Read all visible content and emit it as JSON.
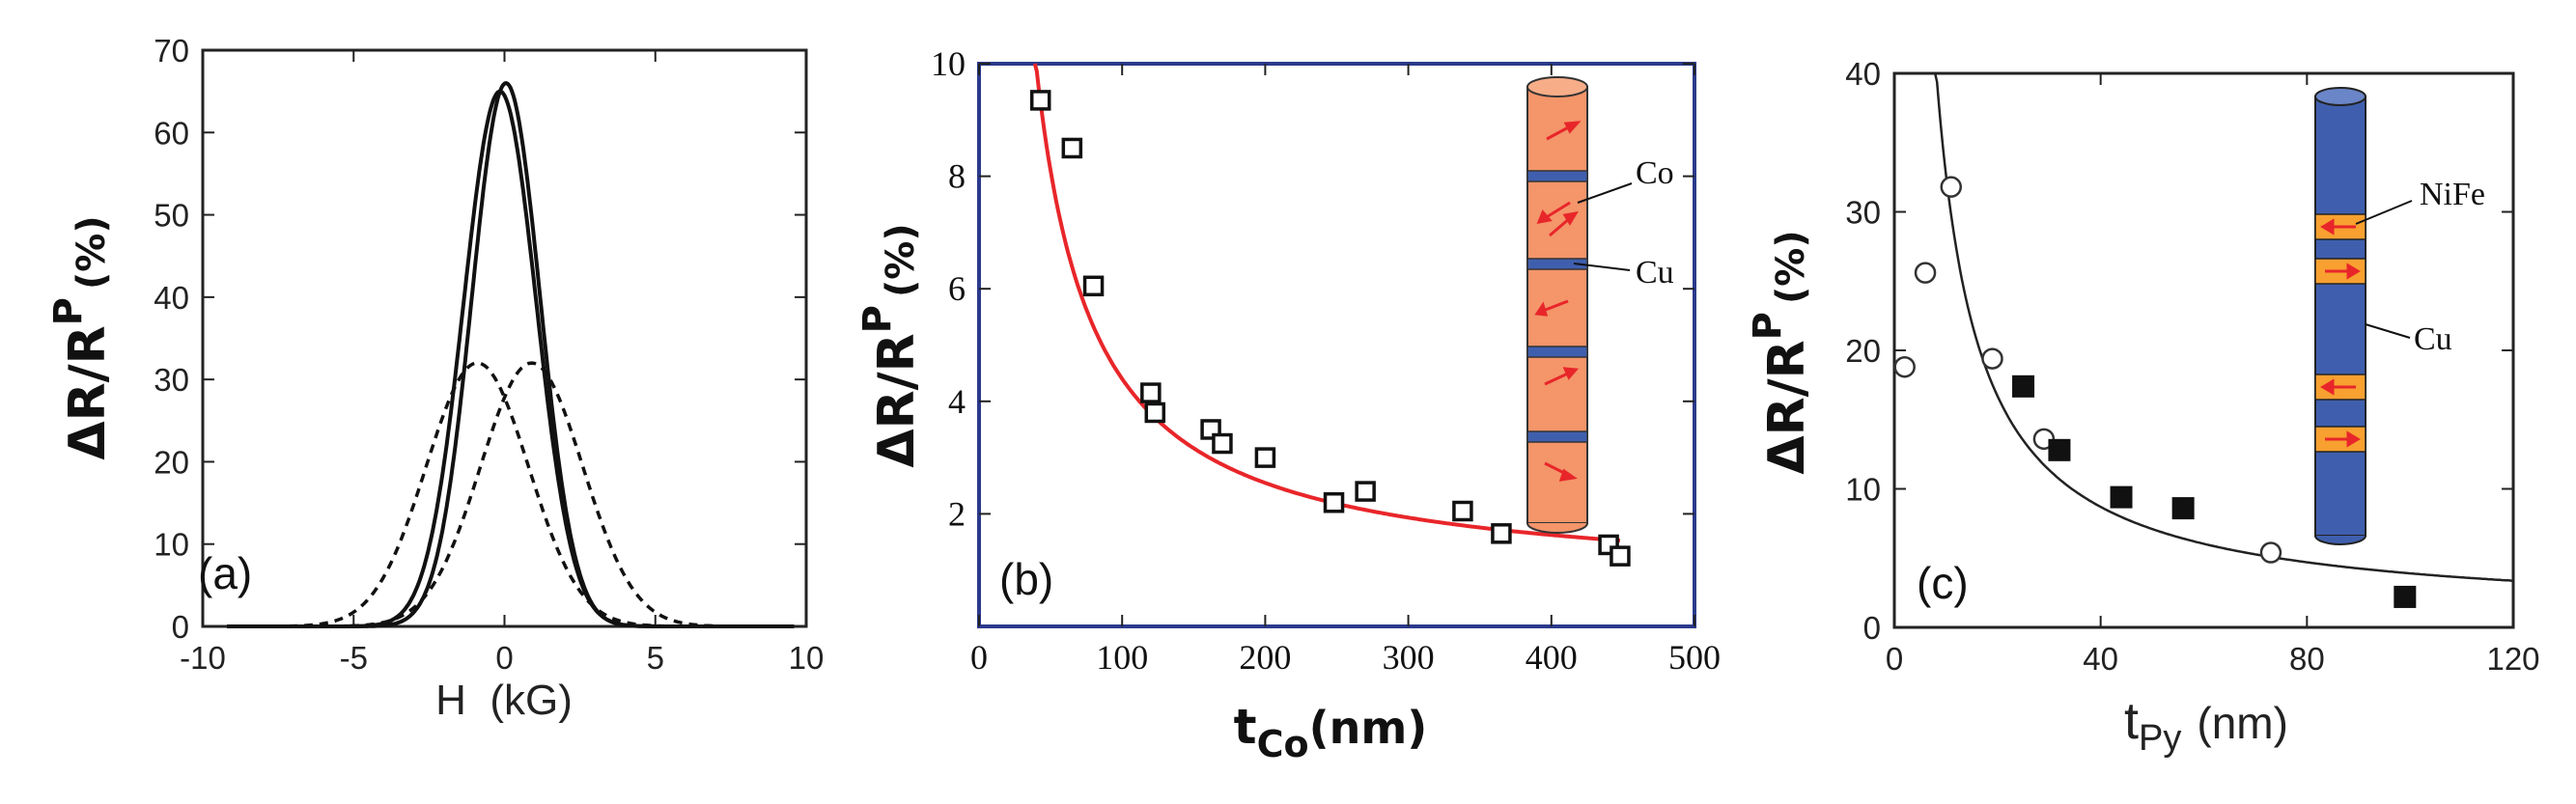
{
  "chart_data": [
    {
      "type": "line",
      "panel_label": "(a)",
      "xlabel": "H  (kG)",
      "ylabel": "ΔR/R",
      "ylabel_sup": "P",
      "ylabel_unit": "(%)",
      "xlim": [
        -10,
        10
      ],
      "ylim": [
        0,
        70
      ],
      "xticks": [
        -10,
        -5,
        0,
        5,
        10
      ],
      "yticks": [
        0,
        10,
        20,
        30,
        40,
        50,
        60,
        70
      ],
      "series": [
        {
          "name": "solid-1",
          "style": "solid",
          "peak": 66.0,
          "center": 0.05,
          "width": 1.6
        },
        {
          "name": "solid-2",
          "style": "solid",
          "peak": 65.0,
          "center": -0.15,
          "width": 1.7
        },
        {
          "name": "dashed-1",
          "style": "dashed",
          "peak": 32.0,
          "center": -0.9,
          "width": 2.4
        },
        {
          "name": "dashed-2",
          "style": "dashed",
          "peak": 32.0,
          "center": 0.9,
          "width": 2.4
        }
      ]
    },
    {
      "type": "scatter",
      "panel_label": "(b)",
      "xlabel": "t",
      "xlabel_sub": "Co",
      "xlabel_unit": "(nm)",
      "ylabel": "ΔR/R",
      "ylabel_sup": "P",
      "ylabel_unit": "(%)",
      "xlim": [
        0,
        500
      ],
      "ylim": [
        0,
        10
      ],
      "xticks": [
        0,
        100,
        200,
        300,
        400,
        500
      ],
      "yticks": [
        2,
        4,
        6,
        8,
        10
      ],
      "points": {
        "x": [
          43,
          65,
          80,
          120,
          123,
          162,
          170,
          200,
          248,
          270,
          338,
          365,
          440,
          448
        ],
        "y": [
          9.35,
          8.5,
          6.05,
          4.15,
          3.8,
          3.5,
          3.25,
          3.0,
          2.2,
          2.4,
          2.05,
          1.65,
          1.45,
          1.25
        ]
      },
      "fit": {
        "formula": "a/x + b",
        "a": 370,
        "b": 0.7,
        "color": "#e8262a",
        "x_start": 39,
        "x_end": 448
      },
      "inset": {
        "labels": [
          "Co",
          "Cu"
        ],
        "body_color": "#f4956a",
        "band_color": "#3f5fae",
        "arrow_color": "#e8262a"
      }
    },
    {
      "type": "scatter",
      "panel_label": "(c)",
      "xlabel": "t",
      "xlabel_sub": "Py",
      "xlabel_unit": "(nm)",
      "ylabel": "ΔR/R",
      "ylabel_sup": "P",
      "ylabel_unit": "(%)",
      "xlim": [
        0,
        120
      ],
      "ylim": [
        0,
        40
      ],
      "xticks": [
        0,
        40,
        80,
        120
      ],
      "yticks": [
        0,
        10,
        20,
        30,
        40
      ],
      "open_points": {
        "x": [
          2,
          6,
          11,
          19,
          29,
          73
        ],
        "y": [
          18.8,
          25.6,
          31.8,
          19.4,
          13.6,
          5.4
        ]
      },
      "filled_points": {
        "x": [
          25,
          32,
          44,
          56,
          99
        ],
        "y": [
          17.4,
          12.8,
          9.4,
          8.6,
          2.2
        ]
      },
      "fit": {
        "formula": "a/x + b",
        "a": 320,
        "b": 0.7,
        "color": "#222222",
        "x_start": 7.9,
        "x_end": 120
      },
      "inset": {
        "labels": [
          "NiFe",
          "Cu"
        ],
        "body_color": "#3f5fae",
        "band_color": "#f8a030",
        "arrow_color": "#e8262a"
      }
    }
  ]
}
